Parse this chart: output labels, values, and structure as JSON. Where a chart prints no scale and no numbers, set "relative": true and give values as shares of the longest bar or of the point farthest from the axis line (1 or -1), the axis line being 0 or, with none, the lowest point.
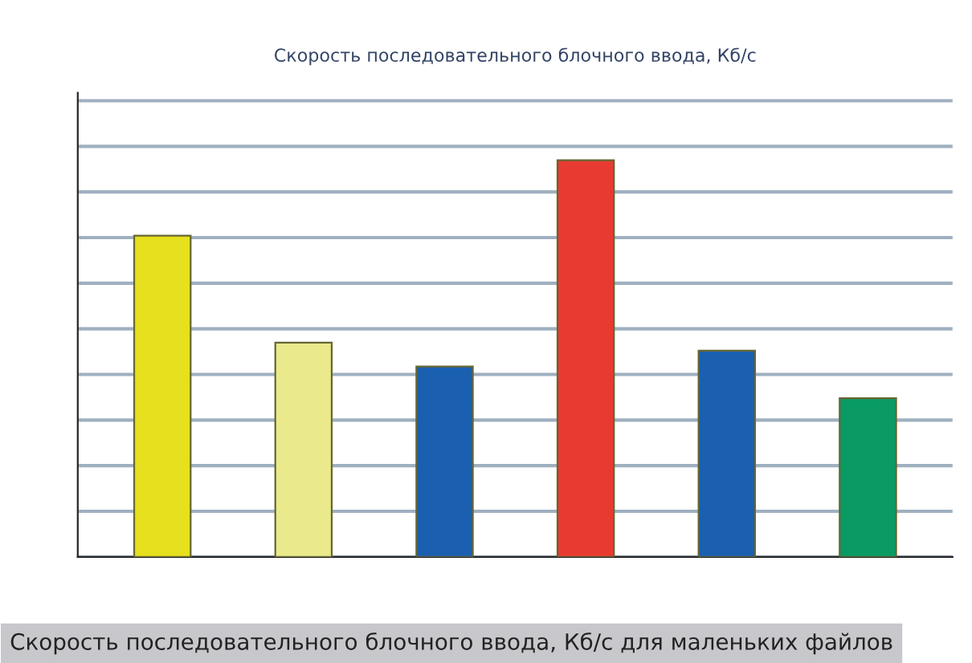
{
  "chart_data": {
    "type": "bar",
    "title": "Скорость последовательного блочного ввода, Кб/с",
    "categories": [
      null,
      null,
      null,
      null,
      null,
      null
    ],
    "values": [
      0.81,
      0.54,
      0.48,
      1,
      0.52,
      0.4
    ],
    "colors": [
      "#e6e01e",
      "#eaea8c",
      "#1a5fb0",
      "#e83a30",
      "#1a5fb0",
      "#0a9a64"
    ],
    "relative": true,
    "grid": "y",
    "annotations": [
      "Скорость последовательного блочного ввода, Кб/с для маленьких файлов"
    ]
  }
}
